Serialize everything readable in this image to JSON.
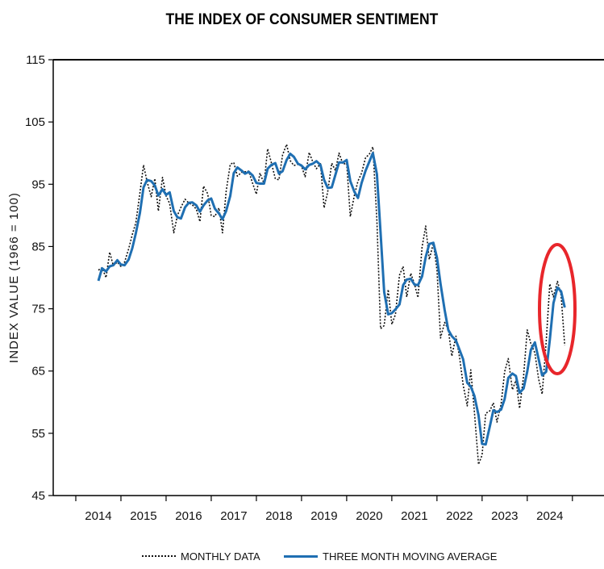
{
  "colors": {
    "moving_average": "#1f6fb2",
    "monthly": "#111111",
    "highlight": "#e8262b"
  },
  "chart_data": {
    "type": "line",
    "title": "THE INDEX OF CONSUMER SENTIMENT",
    "xlabel": "",
    "ylabel": "INDEX VALUE (1966 = 100)",
    "xlim": [
      2013.0,
      2025.2
    ],
    "ylim": [
      45,
      115
    ],
    "yticks": [
      45,
      55,
      65,
      75,
      85,
      95,
      105,
      115
    ],
    "xtick_labels": [
      "2014",
      "2015",
      "2016",
      "2017",
      "2018",
      "2019",
      "2020",
      "2021",
      "2022",
      "2023",
      "2024"
    ],
    "legend": [
      "MONTHLY DATA",
      "THREE MONTH MOVING AVERAGE"
    ],
    "annotation": "red ellipse highlighting the 2024 decline",
    "series": [
      {
        "name": "MONTHLY DATA",
        "style": "dotted",
        "x": [
          2014.0,
          2014.08,
          2014.17,
          2014.25,
          2014.33,
          2014.42,
          2014.5,
          2014.58,
          2014.67,
          2014.75,
          2014.83,
          2014.92,
          2015.0,
          2015.08,
          2015.17,
          2015.25,
          2015.33,
          2015.42,
          2015.5,
          2015.58,
          2015.67,
          2015.75,
          2015.83,
          2015.92,
          2016.0,
          2016.08,
          2016.17,
          2016.25,
          2016.33,
          2016.42,
          2016.5,
          2016.58,
          2016.67,
          2016.75,
          2016.83,
          2016.92,
          2017.0,
          2017.08,
          2017.17,
          2017.25,
          2017.33,
          2017.42,
          2017.5,
          2017.58,
          2017.67,
          2017.75,
          2017.83,
          2017.92,
          2018.0,
          2018.08,
          2018.17,
          2018.25,
          2018.33,
          2018.42,
          2018.5,
          2018.58,
          2018.67,
          2018.75,
          2018.83,
          2018.92,
          2019.0,
          2019.08,
          2019.17,
          2019.25,
          2019.33,
          2019.42,
          2019.5,
          2019.58,
          2019.67,
          2019.75,
          2019.83,
          2019.92,
          2020.0,
          2020.08,
          2020.17,
          2020.25,
          2020.33,
          2020.42,
          2020.5,
          2020.58,
          2020.67,
          2020.75,
          2020.83,
          2020.92,
          2021.0,
          2021.08,
          2021.17,
          2021.25,
          2021.33,
          2021.42,
          2021.5,
          2021.58,
          2021.67,
          2021.75,
          2021.83,
          2021.92,
          2022.0,
          2022.08,
          2022.17,
          2022.25,
          2022.33,
          2022.42,
          2022.5,
          2022.58,
          2022.67,
          2022.75,
          2022.83,
          2022.92,
          2023.0,
          2023.08,
          2023.17,
          2023.25,
          2023.33,
          2023.42,
          2023.5,
          2023.58,
          2023.67,
          2023.75,
          2023.83,
          2023.92,
          2024.0,
          2024.08,
          2024.17,
          2024.25,
          2024.33
        ],
        "values": [
          81.2,
          81.6,
          80.0,
          84.1,
          81.9,
          82.5,
          81.8,
          82.5,
          84.6,
          86.9,
          88.8,
          93.6,
          98.1,
          95.4,
          93.0,
          95.9,
          90.7,
          96.1,
          93.1,
          91.9,
          87.2,
          90.0,
          91.3,
          92.6,
          92.0,
          91.7,
          91.0,
          89.0,
          94.7,
          93.5,
          90.0,
          89.8,
          91.2,
          87.2,
          93.8,
          98.2,
          98.5,
          96.3,
          96.9,
          97.0,
          97.1,
          95.1,
          93.4,
          96.8,
          95.1,
          100.7,
          98.5,
          95.9,
          95.7,
          99.7,
          101.4,
          98.8,
          98.0,
          98.2,
          97.9,
          96.2,
          100.1,
          98.6,
          97.5,
          98.3,
          91.2,
          93.8,
          98.4,
          97.2,
          100.0,
          98.2,
          98.4,
          89.8,
          93.2,
          95.5,
          96.8,
          99.3,
          99.8,
          101.0,
          89.1,
          71.8,
          72.3,
          78.1,
          72.5,
          74.1,
          80.4,
          81.8,
          76.9,
          80.7,
          79.0,
          76.8,
          84.9,
          88.3,
          82.9,
          85.5,
          81.2,
          70.3,
          72.8,
          71.7,
          67.4,
          70.6,
          67.2,
          62.8,
          59.4,
          65.2,
          58.4,
          50.0,
          51.5,
          58.2,
          58.6,
          59.9,
          56.8,
          59.7,
          64.9,
          67.0,
          62.0,
          63.5,
          59.0,
          64.2,
          71.6,
          69.4,
          67.9,
          63.8,
          61.3,
          69.7,
          79.0,
          76.9,
          79.4,
          77.2,
          69.1
        ]
      },
      {
        "name": "THREE MONTH MOVING AVERAGE",
        "style": "solid",
        "x": [
          2014.0,
          2014.08,
          2014.17,
          2014.25,
          2014.33,
          2014.42,
          2014.5,
          2014.58,
          2014.67,
          2014.75,
          2014.83,
          2014.92,
          2015.0,
          2015.08,
          2015.17,
          2015.25,
          2015.33,
          2015.42,
          2015.5,
          2015.58,
          2015.67,
          2015.75,
          2015.83,
          2015.92,
          2016.0,
          2016.08,
          2016.17,
          2016.25,
          2016.33,
          2016.42,
          2016.5,
          2016.58,
          2016.67,
          2016.75,
          2016.83,
          2016.92,
          2017.0,
          2017.08,
          2017.17,
          2017.25,
          2017.33,
          2017.42,
          2017.5,
          2017.58,
          2017.67,
          2017.75,
          2017.83,
          2017.92,
          2018.0,
          2018.08,
          2018.17,
          2018.25,
          2018.33,
          2018.42,
          2018.5,
          2018.58,
          2018.67,
          2018.75,
          2018.83,
          2018.92,
          2019.0,
          2019.08,
          2019.17,
          2019.25,
          2019.33,
          2019.42,
          2019.5,
          2019.58,
          2019.67,
          2019.75,
          2019.83,
          2019.92,
          2020.0,
          2020.08,
          2020.17,
          2020.25,
          2020.33,
          2020.42,
          2020.5,
          2020.58,
          2020.67,
          2020.75,
          2020.83,
          2020.92,
          2021.0,
          2021.08,
          2021.17,
          2021.25,
          2021.33,
          2021.42,
          2021.5,
          2021.58,
          2021.67,
          2021.75,
          2021.83,
          2021.92,
          2022.0,
          2022.08,
          2022.17,
          2022.25,
          2022.33,
          2022.42,
          2022.5,
          2022.58,
          2022.67,
          2022.75,
          2022.83,
          2022.92,
          2023.0,
          2023.08,
          2023.17,
          2023.25,
          2023.33,
          2023.42,
          2023.5,
          2023.58,
          2023.67,
          2023.75,
          2023.83,
          2023.92,
          2024.0,
          2024.08,
          2024.17,
          2024.25,
          2024.33
        ],
        "values": [
          79.5,
          81.5,
          81.0,
          81.8,
          82.0,
          82.8,
          82.1,
          82.0,
          82.9,
          84.7,
          87.1,
          90.4,
          94.5,
          95.7,
          95.5,
          94.8,
          93.2,
          94.2,
          93.3,
          93.7,
          90.7,
          89.7,
          89.5,
          91.3,
          92.0,
          92.1,
          91.6,
          90.6,
          91.6,
          92.4,
          92.7,
          91.1,
          90.3,
          89.4,
          90.7,
          93.1,
          96.8,
          97.7,
          97.2,
          96.7,
          97.0,
          96.4,
          95.2,
          95.1,
          95.1,
          97.5,
          98.1,
          98.4,
          96.7,
          97.1,
          98.9,
          99.9,
          99.4,
          98.3,
          98.0,
          97.4,
          98.1,
          98.3,
          98.7,
          98.1,
          95.7,
          94.4,
          94.5,
          96.5,
          98.5,
          98.5,
          98.9,
          95.5,
          93.8,
          92.8,
          95.2,
          97.2,
          98.6,
          100.0,
          96.6,
          87.3,
          77.7,
          74.1,
          74.3,
          74.9,
          75.7,
          78.8,
          79.7,
          79.8,
          78.9,
          78.8,
          80.2,
          83.3,
          85.4,
          85.6,
          83.2,
          79.0,
          74.8,
          71.6,
          70.6,
          69.9,
          68.4,
          66.9,
          63.1,
          62.5,
          61.0,
          57.9,
          53.3,
          53.2,
          56.1,
          58.7,
          58.4,
          58.8,
          60.5,
          63.9,
          64.6,
          64.2,
          61.5,
          62.2,
          64.9,
          68.4,
          69.6,
          67.0,
          64.3,
          64.9,
          70.0,
          75.9,
          78.4,
          77.8,
          75.2
        ]
      }
    ]
  }
}
